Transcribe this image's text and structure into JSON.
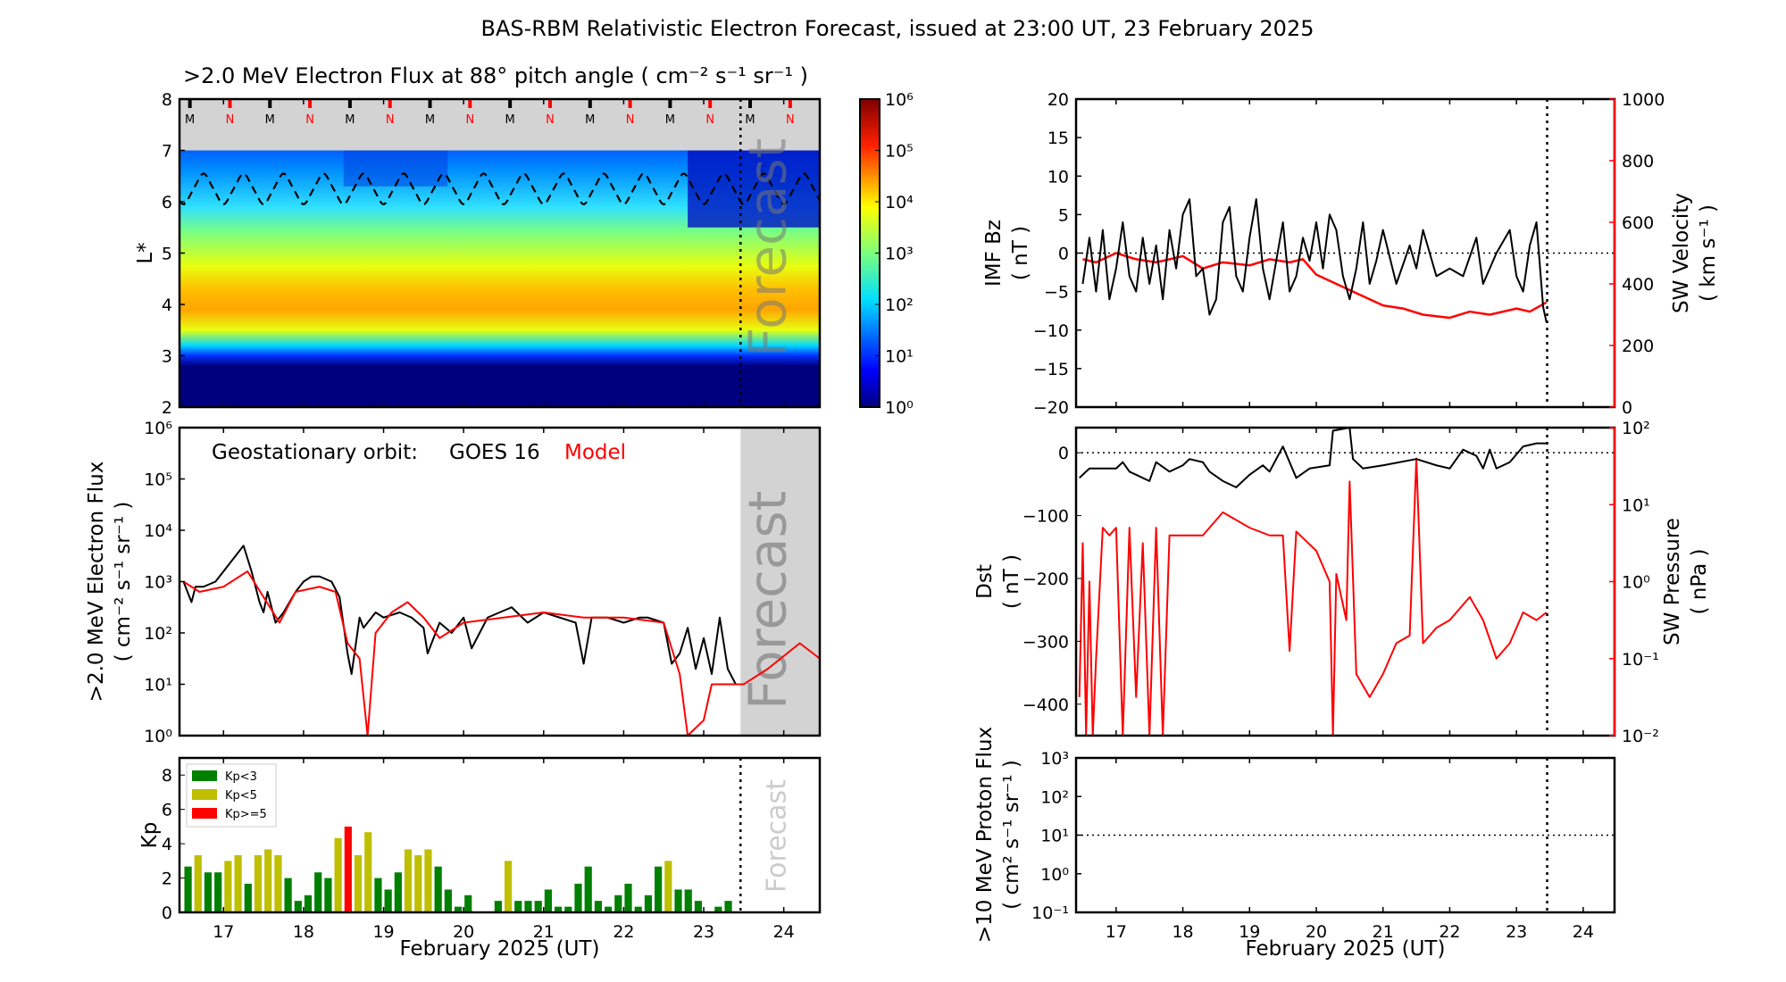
{
  "title": "BAS-RBM Relativistic Electron Forecast, issued at 23:00 UT, 23 February 2025",
  "colors": {
    "kp_low": "#008000",
    "kp_mid": "#bfbf00",
    "kp_high": "#ff0000",
    "model": "#ff0000",
    "obs": "#000000",
    "forecast_shade": "#d3d3d3"
  },
  "chart_data": [
    {
      "id": "spectrogram",
      "type": "heatmap",
      "title": ">2.0 MeV Electron Flux at 88° pitch angle ( cm⁻² s⁻¹ sr⁻¹ )",
      "ylabel": "L*",
      "ylim": [
        2,
        8
      ],
      "yticks": [
        "2",
        "3",
        "4",
        "5",
        "6",
        "7",
        "8"
      ],
      "xlim": [
        16.45,
        24.45
      ],
      "colorbar": {
        "scale": "log",
        "range": [
          1,
          1000000
        ],
        "ticks": [
          "10⁰",
          "10¹",
          "10²",
          "10³",
          "10⁴",
          "10⁵",
          "10⁶"
        ]
      },
      "mlt_markers": [
        "M",
        "N",
        "M",
        "N",
        "M",
        "N",
        "M",
        "N",
        "M",
        "N",
        "M",
        "N",
        "M",
        "N",
        "M",
        "N"
      ],
      "forecast_text": "Forecast",
      "forecast_start": 23.46
    },
    {
      "id": "goes",
      "type": "line",
      "ylabel": ">2.0 MeV Electron Flux",
      "ylabel2": "( cm⁻² s⁻¹ sr⁻¹ )",
      "yscale": "log",
      "ylim": [
        1,
        1000000
      ],
      "yticks": [
        "10⁰",
        "10¹",
        "10²",
        "10³",
        "10⁴",
        "10⁵",
        "10⁶"
      ],
      "legend_prefix": "Geostationary orbit:",
      "legend_obs": "GOES 16",
      "legend_model": "Model",
      "forecast_text": "Forecast",
      "xlim": [
        16.45,
        24.45
      ],
      "series": [
        {
          "name": "GOES 16",
          "x": [
            16.5,
            16.6,
            16.65,
            16.75,
            16.9,
            17.05,
            17.2,
            17.25,
            17.35,
            17.45,
            17.5,
            17.55,
            17.65,
            17.75,
            17.9,
            18.0,
            18.1,
            18.2,
            18.35,
            18.45,
            18.55,
            18.6,
            18.7,
            18.75,
            18.9,
            19.0,
            19.2,
            19.35,
            19.5,
            19.55,
            19.7,
            19.85,
            20.0,
            20.1,
            20.3,
            20.45,
            20.6,
            20.8,
            21.0,
            21.2,
            21.4,
            21.5,
            21.6,
            21.8,
            22.0,
            22.2,
            22.3,
            22.5,
            22.6,
            22.7,
            22.8,
            22.9,
            23.0,
            23.1,
            23.2,
            23.3,
            23.4
          ],
          "log10": [
            3.0,
            2.6,
            2.9,
            2.9,
            3.0,
            3.3,
            3.6,
            3.7,
            3.2,
            2.6,
            2.4,
            2.8,
            2.2,
            2.4,
            2.8,
            3.0,
            3.1,
            3.1,
            3.0,
            2.7,
            1.6,
            1.2,
            2.3,
            2.1,
            2.4,
            2.3,
            2.4,
            2.3,
            2.1,
            1.6,
            2.2,
            2.0,
            2.3,
            1.7,
            2.3,
            2.4,
            2.5,
            2.2,
            2.4,
            2.3,
            2.2,
            1.4,
            2.3,
            2.3,
            2.2,
            2.3,
            2.3,
            2.2,
            1.4,
            1.6,
            2.1,
            1.3,
            1.9,
            1.2,
            2.3,
            1.3,
            1.0
          ]
        },
        {
          "name": "Model",
          "x": [
            16.5,
            16.7,
            17.0,
            17.3,
            17.5,
            17.7,
            17.9,
            18.2,
            18.4,
            18.55,
            18.7,
            18.8,
            18.9,
            19.1,
            19.3,
            19.5,
            19.7,
            20.0,
            20.5,
            21.0,
            21.5,
            22.0,
            22.5,
            22.7,
            22.8,
            23.0,
            23.1,
            23.5,
            23.8,
            24.2,
            24.45
          ],
          "log10": [
            3.0,
            2.8,
            2.9,
            3.2,
            2.7,
            2.2,
            2.8,
            2.9,
            2.8,
            1.8,
            1.5,
            0.0,
            2.0,
            2.4,
            2.6,
            2.3,
            1.9,
            2.2,
            2.3,
            2.4,
            2.3,
            2.3,
            2.2,
            1.2,
            0.0,
            0.3,
            1.0,
            1.0,
            1.3,
            1.8,
            1.5
          ]
        }
      ]
    },
    {
      "id": "kp",
      "type": "bar",
      "ylabel": "Kp",
      "ylim": [
        0,
        9
      ],
      "yticks": [
        "0",
        "2",
        "4",
        "6",
        "8"
      ],
      "xlim": [
        16.45,
        24.45
      ],
      "forecast_text": "Forecast",
      "legend": [
        "Kp<3",
        "Kp<5",
        "Kp>=5"
      ],
      "bar_start": 16.5,
      "bar_step": 0.125,
      "values": [
        2.67,
        3.33,
        2.33,
        2.33,
        3.0,
        3.33,
        1.67,
        3.33,
        3.67,
        3.33,
        2.0,
        0.67,
        1.0,
        2.33,
        2.0,
        4.33,
        5.0,
        3.33,
        4.67,
        2.0,
        1.33,
        2.33,
        3.67,
        3.33,
        3.67,
        2.67,
        1.33,
        0.33,
        1.0,
        0,
        0,
        0.67,
        3.0,
        0.67,
        0.67,
        0.67,
        1.33,
        0.33,
        0.33,
        1.67,
        2.67,
        0.67,
        0.33,
        1.0,
        1.67,
        0.33,
        1.0,
        2.67,
        3.0,
        1.33,
        1.33,
        0.67,
        0,
        0.33,
        0.67
      ],
      "xticks": [
        "17",
        "18",
        "19",
        "20",
        "21",
        "22",
        "23",
        "24"
      ],
      "xlabel": "February 2025 (UT)"
    },
    {
      "id": "imf",
      "type": "line",
      "ylabel": "IMF Bz",
      "ylabel2": "( nT )",
      "ylim": [
        -20,
        20
      ],
      "yticks": [
        "−20",
        "−15",
        "−10",
        "−5",
        "0",
        "5",
        "10",
        "15",
        "20"
      ],
      "ylabel_right": "SW Velocity",
      "ylabel_right2": "( km s⁻¹ )",
      "ylim_right": [
        0,
        1000
      ],
      "yticks_right": [
        "0",
        "200",
        "400",
        "600",
        "800",
        "1000"
      ],
      "xlim": [
        16.4,
        24.47
      ],
      "series": [
        {
          "name": "IMF Bz",
          "x": [
            16.5,
            16.6,
            16.7,
            16.8,
            16.9,
            17.0,
            17.1,
            17.2,
            17.3,
            17.4,
            17.5,
            17.6,
            17.7,
            17.8,
            17.9,
            18.0,
            18.1,
            18.2,
            18.3,
            18.4,
            18.5,
            18.6,
            18.7,
            18.8,
            18.9,
            19.0,
            19.1,
            19.2,
            19.3,
            19.4,
            19.5,
            19.6,
            19.7,
            19.8,
            19.9,
            20.0,
            20.1,
            20.2,
            20.3,
            20.4,
            20.5,
            20.6,
            20.7,
            20.8,
            20.9,
            21.0,
            21.2,
            21.4,
            21.5,
            21.6,
            21.8,
            22.0,
            22.2,
            22.4,
            22.5,
            22.7,
            22.9,
            23.0,
            23.1,
            23.2,
            23.3,
            23.4,
            23.45
          ],
          "values": [
            -4,
            2,
            -5,
            3,
            -6,
            -2,
            4,
            -3,
            -5,
            2,
            -4,
            1,
            -6,
            3,
            -2,
            5,
            7,
            -3,
            -2,
            -8,
            -6,
            4,
            6,
            -3,
            -5,
            2,
            7,
            -2,
            -6,
            -1,
            4,
            -5,
            -3,
            2,
            -1,
            4,
            -2,
            5,
            3,
            -3,
            -6,
            -2,
            4,
            -4,
            -1,
            3,
            -4,
            1,
            -2,
            3,
            -3,
            -2,
            -3,
            2,
            -4,
            0,
            3,
            -3,
            -5,
            1,
            4,
            -7,
            -9
          ]
        },
        {
          "name": "SW Velocity",
          "x": [
            16.5,
            16.7,
            17.0,
            17.3,
            17.6,
            18.0,
            18.3,
            18.6,
            19.0,
            19.3,
            19.6,
            19.8,
            20.0,
            20.3,
            20.6,
            21.0,
            21.3,
            21.6,
            22.0,
            22.3,
            22.6,
            23.0,
            23.2,
            23.45
          ],
          "values": [
            480,
            470,
            500,
            480,
            470,
            490,
            450,
            470,
            460,
            480,
            470,
            480,
            430,
            400,
            370,
            330,
            320,
            300,
            290,
            310,
            300,
            320,
            310,
            340
          ]
        }
      ]
    },
    {
      "id": "dst",
      "type": "line",
      "ylabel": "Dst",
      "ylabel2": "( nT )",
      "ylim": [
        -450,
        40
      ],
      "yticks": [
        "−400",
        "−300",
        "−200",
        "−100",
        "0"
      ],
      "ylabel_right": "SW Pressure",
      "ylabel_right2": "( nPa )",
      "ylim_right": [
        0.01,
        100
      ],
      "yticks_right": [
        "10⁻²",
        "10⁻¹",
        "10⁰",
        "10¹",
        "10²"
      ],
      "xlim": [
        16.4,
        24.47
      ],
      "series": [
        {
          "name": "Dst",
          "x": [
            16.45,
            16.6,
            17.0,
            17.1,
            17.2,
            17.5,
            17.6,
            17.8,
            18.0,
            18.1,
            18.3,
            18.4,
            18.6,
            18.8,
            19.0,
            19.2,
            19.3,
            19.5,
            19.7,
            19.9,
            20.2,
            20.25,
            20.5,
            20.55,
            20.7,
            21.0,
            21.5,
            21.8,
            22.0,
            22.2,
            22.4,
            22.5,
            22.6,
            22.7,
            22.9,
            23.1,
            23.3,
            23.45
          ],
          "values": [
            -40,
            -25,
            -25,
            -15,
            -30,
            -45,
            -15,
            -30,
            -20,
            -10,
            -15,
            -30,
            -45,
            -55,
            -35,
            -20,
            -30,
            10,
            -40,
            -25,
            -20,
            35,
            50,
            -10,
            -25,
            -20,
            -10,
            -20,
            -25,
            5,
            -5,
            -25,
            5,
            -25,
            -15,
            10,
            15,
            15
          ]
        },
        {
          "name": "SW Pressure",
          "x": [
            16.45,
            16.5,
            16.55,
            16.6,
            16.65,
            16.7,
            16.8,
            16.9,
            17.0,
            17.1,
            17.2,
            17.3,
            17.4,
            17.5,
            17.6,
            17.7,
            17.8,
            18.0,
            18.3,
            18.6,
            19.0,
            19.3,
            19.5,
            19.6,
            19.7,
            20.0,
            20.2,
            20.25,
            20.3,
            20.45,
            20.5,
            20.6,
            20.8,
            21.0,
            21.2,
            21.4,
            21.5,
            21.6,
            21.8,
            22.0,
            22.3,
            22.5,
            22.7,
            22.9,
            23.1,
            23.3,
            23.45
          ],
          "log10": [
            -1.5,
            0.5,
            -2,
            0.0,
            -2,
            -1,
            0.7,
            0.6,
            0.7,
            -2,
            0.7,
            -1.5,
            0.5,
            -2,
            0.7,
            -2,
            0.6,
            0.6,
            0.6,
            0.9,
            0.7,
            0.6,
            0.6,
            -0.9,
            0.65,
            0.4,
            0.0,
            -2,
            0.1,
            -0.5,
            1.3,
            -1.2,
            -1.5,
            -1.2,
            -0.8,
            -0.7,
            1.6,
            -0.8,
            -0.6,
            -0.5,
            -0.2,
            -0.5,
            -1.0,
            -0.8,
            -0.4,
            -0.5,
            -0.4
          ]
        }
      ]
    },
    {
      "id": "proton",
      "type": "line",
      "ylabel": ">10 MeV Proton Flux",
      "ylabel2": "( cm² s⁻¹ sr⁻¹ )",
      "yscale": "log",
      "ylim": [
        0.1,
        1000
      ],
      "yticks": [
        "10⁻¹",
        "10⁰",
        "10¹",
        "10²",
        "10³"
      ],
      "threshold": 10,
      "xlim": [
        16.4,
        24.47
      ],
      "xticks": [
        "17",
        "18",
        "19",
        "20",
        "21",
        "22",
        "23",
        "24"
      ],
      "xlabel": "February 2025 (UT)",
      "series": []
    }
  ]
}
